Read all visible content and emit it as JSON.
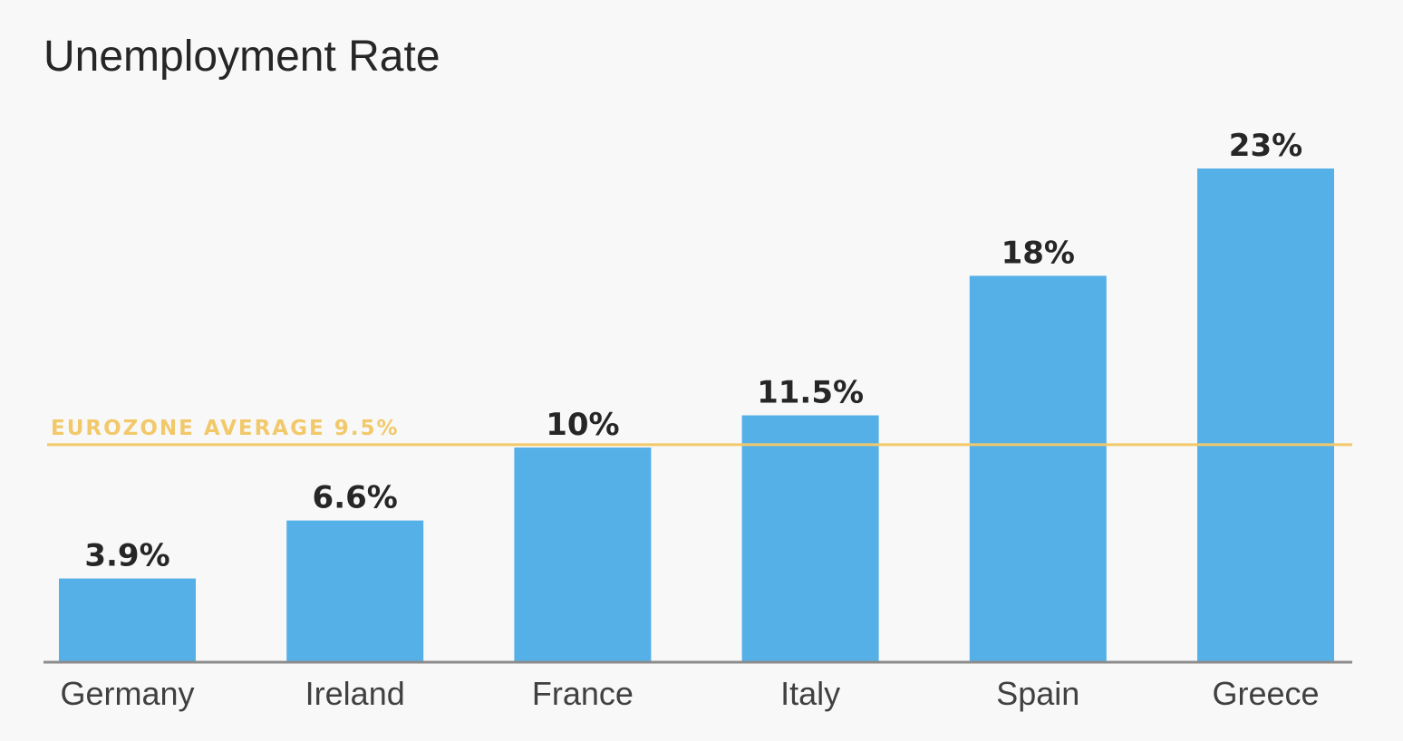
{
  "chart_data": {
    "type": "bar",
    "title": "Unemployment Rate",
    "xlabel": "",
    "ylabel": "",
    "categories": [
      "Germany",
      "Ireland",
      "France",
      "Italy",
      "Spain",
      "Greece"
    ],
    "values": [
      3.9,
      6.6,
      10,
      11.5,
      18,
      23
    ],
    "value_labels": [
      "3.9%",
      "6.6%",
      "10%",
      "11.5%",
      "18%",
      "23%"
    ],
    "ylim": [
      0,
      23
    ],
    "grid": false,
    "reference_line": {
      "label": "EUROZONE AVERAGE 9.5%",
      "value": 9.5
    },
    "colors": {
      "bar": "#56b0e8",
      "reference": "#f2c96a",
      "baseline": "#8c8c8c",
      "background": "#f8f8f8"
    }
  }
}
